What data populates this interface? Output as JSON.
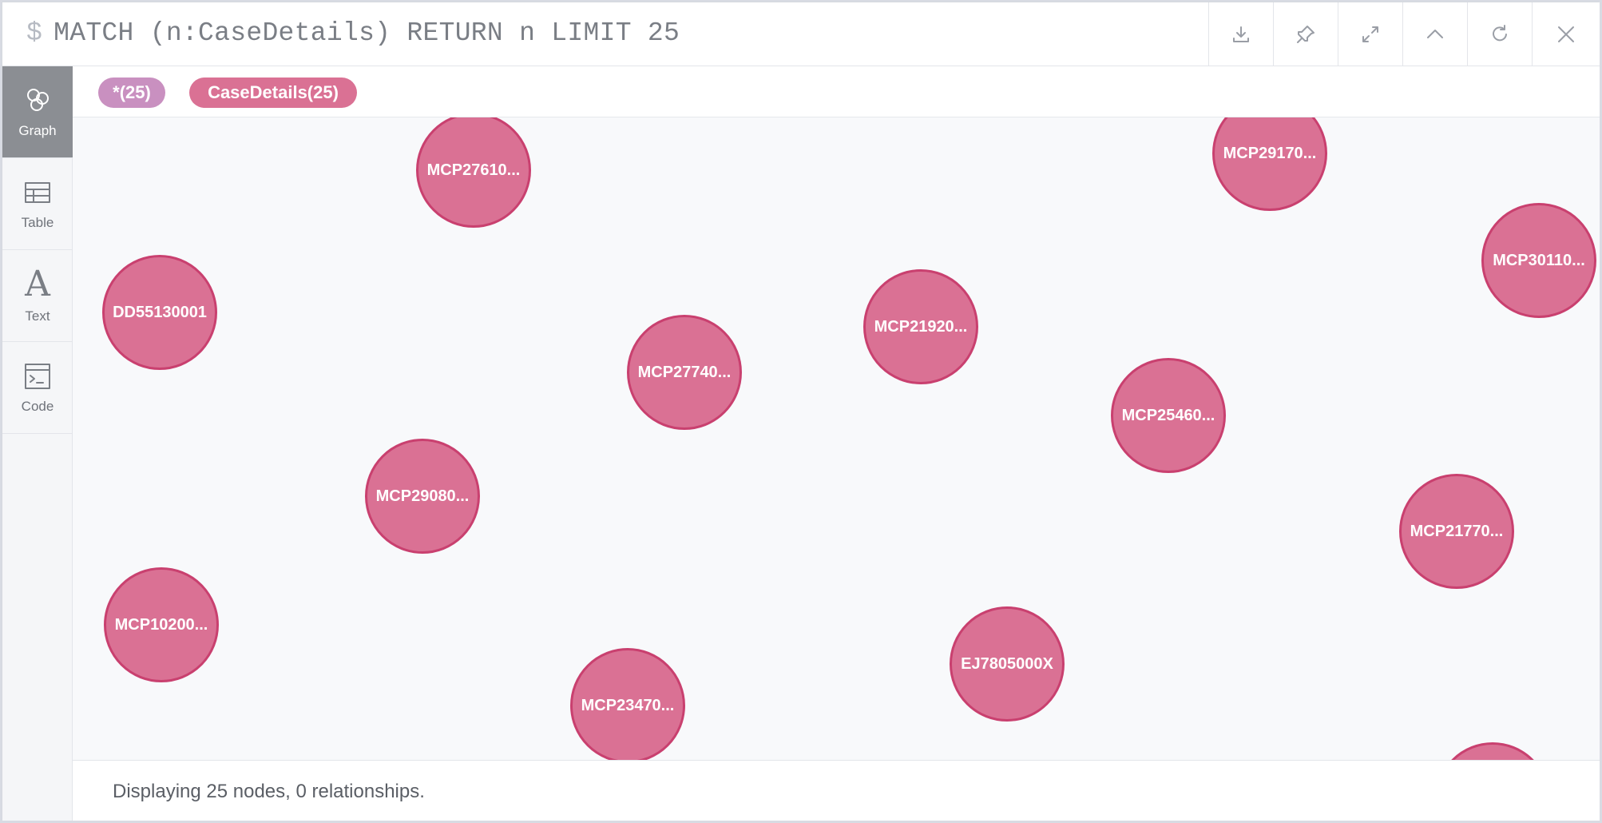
{
  "query": {
    "prompt": "$",
    "text": "MATCH (n:CaseDetails) RETURN n LIMIT 25"
  },
  "toolbar": [
    {
      "name": "download-button",
      "icon": "download-icon"
    },
    {
      "name": "pin-button",
      "icon": "pin-icon"
    },
    {
      "name": "fullscreen-button",
      "icon": "expand-icon"
    },
    {
      "name": "collapse-button",
      "icon": "chevron-up-icon"
    },
    {
      "name": "rerun-button",
      "icon": "refresh-icon"
    },
    {
      "name": "close-button",
      "icon": "close-icon"
    }
  ],
  "sidebar": {
    "items": [
      {
        "label": "Graph",
        "icon": "graph-icon",
        "active": true
      },
      {
        "label": "Table",
        "icon": "table-icon",
        "active": false
      },
      {
        "label": "Text",
        "icon": "text-icon",
        "active": false
      },
      {
        "label": "Code",
        "icon": "code-icon",
        "active": false
      }
    ]
  },
  "labels": {
    "all": "*(25)",
    "case_details": "CaseDetails(25)",
    "all_color": "#c990c0",
    "node_color": "#da7194",
    "node_border_color": "#c9406f"
  },
  "nodes": [
    {
      "caption": "MCP27610..."
    },
    {
      "caption": "MCP29170..."
    },
    {
      "caption": "MCP30110..."
    },
    {
      "caption": "DD55130001"
    },
    {
      "caption": "MCP21920..."
    },
    {
      "caption": "MCP27740..."
    },
    {
      "caption": "MCP25460..."
    },
    {
      "caption": "MCP29080..."
    },
    {
      "caption": "MCP21770..."
    },
    {
      "caption": "MCP10200..."
    },
    {
      "caption": "EJ7805000X"
    },
    {
      "caption": "MCP23470..."
    },
    {
      "caption": ""
    }
  ],
  "footer": {
    "status": "Displaying 25 nodes, 0 relationships."
  }
}
